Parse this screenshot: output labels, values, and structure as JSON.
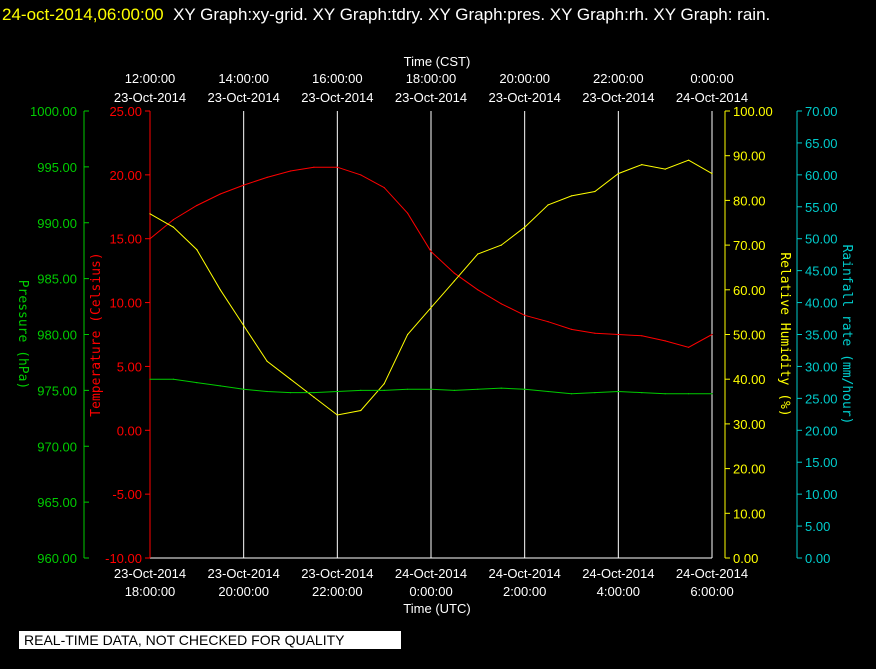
{
  "header": {
    "timestamp": "24-oct-2014,06:00:00",
    "description": "XY Graph:xy-grid.  XY Graph:tdry.  XY Graph:pres.  XY Graph:rh.  XY Graph: rain."
  },
  "footer_note": "REAL-TIME DATA, NOT CHECKED FOR QUALITY",
  "colors": {
    "background": "#000000",
    "temperature": "#ff0000",
    "humidity": "#ffff00",
    "pressure": "#00cc00",
    "rainfall": "#00cccc",
    "grid": "#ffffff"
  },
  "chart_data": {
    "type": "line",
    "top_axis": {
      "title": "Time (CST)",
      "ticks": [
        {
          "time": "12:00:00",
          "date": "23-Oct-2014"
        },
        {
          "time": "14:00:00",
          "date": "23-Oct-2014"
        },
        {
          "time": "16:00:00",
          "date": "23-Oct-2014"
        },
        {
          "time": "18:00:00",
          "date": "23-Oct-2014"
        },
        {
          "time": "20:00:00",
          "date": "23-Oct-2014"
        },
        {
          "time": "22:00:00",
          "date": "23-Oct-2014"
        },
        {
          "time": "0:00:00",
          "date": "24-Oct-2014"
        }
      ]
    },
    "bottom_axis": {
      "title": "Time (UTC)",
      "range": [
        "2014-10-23 18:00",
        "2014-10-24 06:00"
      ],
      "ticks": [
        {
          "date": "23-Oct-2014",
          "time": "18:00:00"
        },
        {
          "date": "23-Oct-2014",
          "time": "20:00:00"
        },
        {
          "date": "23-Oct-2014",
          "time": "22:00:00"
        },
        {
          "date": "24-Oct-2014",
          "time": "0:00:00"
        },
        {
          "date": "24-Oct-2014",
          "time": "2:00:00"
        },
        {
          "date": "24-Oct-2014",
          "time": "4:00:00"
        },
        {
          "date": "24-Oct-2014",
          "time": "6:00:00"
        }
      ]
    },
    "axes": {
      "pressure": {
        "label": "Pressure (hPa)",
        "ylim": [
          960,
          1000
        ],
        "ticks": [
          "1000.00",
          "995.00",
          "990.00",
          "985.00",
          "980.00",
          "975.00",
          "970.00",
          "965.00",
          "960.00"
        ]
      },
      "temperature": {
        "label": "Temperature (Celsius)",
        "ylim": [
          -10,
          25
        ],
        "ticks": [
          "25.00",
          "20.00",
          "15.00",
          "10.00",
          "5.00",
          "0.00",
          "-5.00",
          "-10.00"
        ]
      },
      "humidity": {
        "label": "Relative Humidity (%)",
        "ylim": [
          0,
          100
        ],
        "ticks": [
          "100.00",
          "90.00",
          "80.00",
          "70.00",
          "60.00",
          "50.00",
          "40.00",
          "30.00",
          "20.00",
          "10.00",
          "0.00"
        ]
      },
      "rainfall": {
        "label": "Rainfall rate (mm/hour)",
        "ylim": [
          0,
          70
        ],
        "ticks": [
          "70.00",
          "65.00",
          "60.00",
          "55.00",
          "50.00",
          "45.00",
          "40.00",
          "35.00",
          "30.00",
          "25.00",
          "20.00",
          "15.00",
          "10.00",
          "5.00",
          "0.00"
        ]
      }
    },
    "x_hours_utc": [
      18,
      18.5,
      19,
      19.5,
      20,
      20.5,
      21,
      21.5,
      22,
      22.5,
      23,
      23.5,
      24,
      24.5,
      25,
      25.5,
      26,
      26.5,
      27,
      27.5,
      28,
      28.5,
      29,
      29.5,
      30
    ],
    "series": [
      {
        "key": "temperature",
        "values": [
          15.0,
          16.5,
          17.6,
          18.5,
          19.2,
          19.8,
          20.3,
          20.6,
          20.6,
          20.0,
          19.0,
          17.0,
          14.0,
          12.3,
          11.0,
          9.9,
          9.0,
          8.5,
          7.9,
          7.6,
          7.5,
          7.4,
          7.0,
          6.5,
          7.5
        ]
      },
      {
        "key": "humidity",
        "values": [
          77,
          74,
          69,
          60,
          52,
          44,
          40,
          36,
          32,
          33,
          39,
          50,
          56,
          62,
          68,
          70,
          74,
          79,
          81,
          82,
          86,
          88,
          87,
          89,
          86
        ]
      },
      {
        "key": "pressure",
        "values": [
          976.0,
          976.0,
          975.7,
          975.4,
          975.1,
          974.9,
          974.8,
          974.8,
          974.9,
          975.0,
          975.0,
          975.1,
          975.1,
          975.0,
          975.1,
          975.2,
          975.1,
          974.9,
          974.7,
          974.8,
          974.9,
          974.8,
          974.7,
          974.7,
          974.7
        ]
      },
      {
        "key": "rainfall",
        "values": []
      }
    ]
  }
}
